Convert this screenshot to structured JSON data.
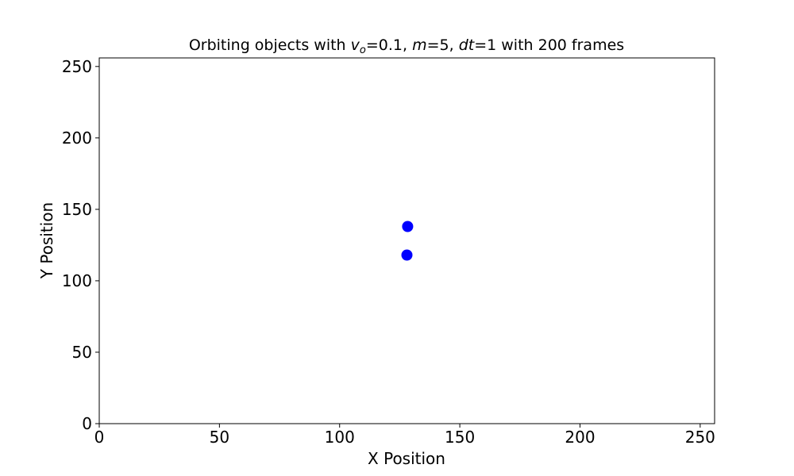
{
  "chart_data": {
    "type": "scatter",
    "title_parts": [
      {
        "t": "Orbiting objects with ",
        "i": false
      },
      {
        "t": "v",
        "i": true
      },
      {
        "t": "o",
        "i": true,
        "sub": true
      },
      {
        "t": "=0.1, ",
        "i": false
      },
      {
        "t": "m",
        "i": true
      },
      {
        "t": "=5, ",
        "i": false
      },
      {
        "t": "dt",
        "i": true
      },
      {
        "t": "=1 with 200 frames",
        "i": false
      }
    ],
    "xlabel": "X Position",
    "ylabel": "Y Position",
    "xlim": [
      0,
      256
    ],
    "ylim": [
      0,
      256
    ],
    "xticks": [
      0,
      50,
      100,
      150,
      200,
      250
    ],
    "yticks": [
      0,
      50,
      100,
      150,
      200,
      250
    ],
    "grid": false,
    "point_color": "#0000ff",
    "points": [
      {
        "x": 128.3,
        "y": 138
      },
      {
        "x": 128.0,
        "y": 118
      }
    ]
  }
}
